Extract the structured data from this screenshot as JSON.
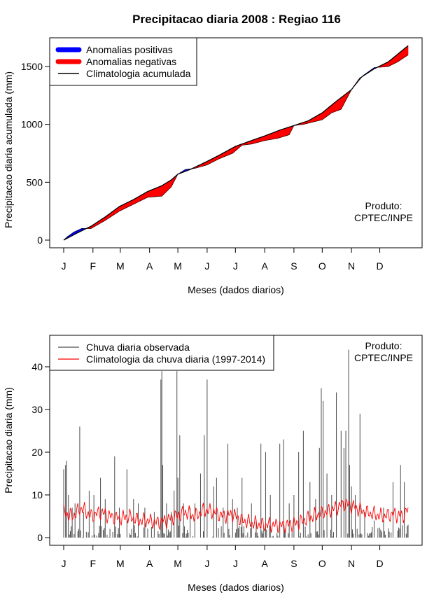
{
  "page": {
    "title": "Precipitacao diaria 2008 : Regiao 116"
  },
  "colors": {
    "positive": "#0000ff",
    "negative": "#ff0000",
    "climatology": "#000000",
    "observed": "#4d4d4d",
    "clim_daily": "#ff0000"
  },
  "chart_data": [
    {
      "type": "area",
      "title": "Precipitacao diaria 2008 : Regiao 116",
      "xlabel": "Meses (dados diarios)",
      "ylabel": "Precipitacao diaria acumulada (mm)",
      "xlim": [
        1,
        366
      ],
      "ylim": [
        0,
        1700
      ],
      "yticks": [
        0,
        500,
        1000,
        1500
      ],
      "month_ticks": {
        "labels": [
          "J",
          "F",
          "M",
          "A",
          "M",
          "J",
          "J",
          "A",
          "S",
          "O",
          "N",
          "D"
        ],
        "days": [
          1,
          32,
          61,
          92,
          122,
          153,
          183,
          214,
          245,
          275,
          306,
          336
        ]
      },
      "legend": {
        "position": "top-left",
        "items": [
          "Anomalias positivas",
          "Anomalias negativas",
          "Climatologia acumulada"
        ]
      },
      "annotation": [
        "Produto:",
        "CPTEC/INPE"
      ],
      "series": [
        {
          "name": "Climatologia acumulada (anchors, day/mm)",
          "points": [
            [
              1,
              0
            ],
            [
              15,
              60
            ],
            [
              30,
              120
            ],
            [
              45,
              200
            ],
            [
              60,
              290
            ],
            [
              75,
              350
            ],
            [
              90,
              420
            ],
            [
              105,
              470
            ],
            [
              115,
              520
            ],
            [
              122,
              570
            ],
            [
              135,
              610
            ],
            [
              153,
              680
            ],
            [
              165,
              730
            ],
            [
              183,
              810
            ],
            [
              200,
              860
            ],
            [
              214,
              900
            ],
            [
              230,
              950
            ],
            [
              245,
              990
            ],
            [
              260,
              1030
            ],
            [
              275,
              1100
            ],
            [
              290,
              1200
            ],
            [
              306,
              1300
            ],
            [
              315,
              1400
            ],
            [
              330,
              1480
            ],
            [
              345,
              1540
            ],
            [
              366,
              1680
            ]
          ]
        },
        {
          "name": "Precipitacao observada acumulada (anchors, day/mm)",
          "points": [
            [
              1,
              0
            ],
            [
              5,
              30
            ],
            [
              12,
              70
            ],
            [
              20,
              100
            ],
            [
              30,
              100
            ],
            [
              45,
              170
            ],
            [
              60,
              250
            ],
            [
              75,
              310
            ],
            [
              90,
              370
            ],
            [
              105,
              380
            ],
            [
              115,
              460
            ],
            [
              122,
              570
            ],
            [
              130,
              610
            ],
            [
              140,
              620
            ],
            [
              153,
              650
            ],
            [
              165,
              700
            ],
            [
              180,
              750
            ],
            [
              190,
              820
            ],
            [
              200,
              830
            ],
            [
              214,
              860
            ],
            [
              228,
              880
            ],
            [
              240,
              910
            ],
            [
              245,
              990
            ],
            [
              255,
              1000
            ],
            [
              265,
              1020
            ],
            [
              275,
              1040
            ],
            [
              285,
              1100
            ],
            [
              295,
              1130
            ],
            [
              306,
              1300
            ],
            [
              318,
              1420
            ],
            [
              330,
              1490
            ],
            [
              345,
              1500
            ],
            [
              355,
              1540
            ],
            [
              366,
              1600
            ]
          ]
        }
      ]
    },
    {
      "type": "line",
      "xlabel": "Meses (dados diarios)",
      "ylabel": "Precipitacao diaria (mm)",
      "xlim": [
        1,
        366
      ],
      "ylim": [
        0,
        45
      ],
      "yticks": [
        0,
        10,
        20,
        30,
        40
      ],
      "month_ticks": {
        "labels": [
          "J",
          "F",
          "M",
          "A",
          "M",
          "J",
          "J",
          "A",
          "S",
          "O",
          "N",
          "D"
        ],
        "days": [
          1,
          32,
          61,
          92,
          122,
          153,
          183,
          214,
          245,
          275,
          306,
          336
        ]
      },
      "legend": {
        "position": "top-left",
        "items": [
          "Chuva diaria observada",
          "Climatologia da chuva diaria (1997-2014)"
        ]
      },
      "annotation": [
        "Produto:",
        "CPTEC/INPE"
      ],
      "series": [
        {
          "name": "Chuva diaria observada (peaks, day/mm)",
          "points": [
            [
              1,
              16
            ],
            [
              3,
              17
            ],
            [
              4,
              18
            ],
            [
              6,
              10
            ],
            [
              10,
              7
            ],
            [
              13,
              8
            ],
            [
              18,
              26
            ],
            [
              22,
              6
            ],
            [
              28,
              11
            ],
            [
              33,
              10
            ],
            [
              40,
              14
            ],
            [
              45,
              9
            ],
            [
              55,
              19
            ],
            [
              60,
              7
            ],
            [
              68,
              16
            ],
            [
              75,
              9
            ],
            [
              80,
              8
            ],
            [
              87,
              7
            ],
            [
              97,
              6
            ],
            [
              104,
              37
            ],
            [
              105,
              39
            ],
            [
              106,
              17
            ],
            [
              110,
              8
            ],
            [
              115,
              6
            ],
            [
              118,
              11
            ],
            [
              121,
              39
            ],
            [
              122,
              14
            ],
            [
              124,
              24
            ],
            [
              128,
              8
            ],
            [
              135,
              7
            ],
            [
              140,
              8
            ],
            [
              146,
              15
            ],
            [
              150,
              24
            ],
            [
              153,
              37
            ],
            [
              160,
              12
            ],
            [
              163,
              14
            ],
            [
              170,
              7
            ],
            [
              175,
              22
            ],
            [
              180,
              9
            ],
            [
              185,
              7
            ],
            [
              190,
              14
            ],
            [
              200,
              8
            ],
            [
              205,
              4
            ],
            [
              210,
              22
            ],
            [
              215,
              20
            ],
            [
              220,
              10
            ],
            [
              230,
              22
            ],
            [
              234,
              23
            ],
            [
              240,
              8
            ],
            [
              245,
              10
            ],
            [
              250,
              20
            ],
            [
              255,
              25
            ],
            [
              262,
              13
            ],
            [
              268,
              9
            ],
            [
              272,
              21
            ],
            [
              274,
              35
            ],
            [
              276,
              32
            ],
            [
              280,
              15
            ],
            [
              285,
              10
            ],
            [
              290,
              34
            ],
            [
              295,
              25
            ],
            [
              298,
              21
            ],
            [
              300,
              25
            ],
            [
              303,
              44
            ],
            [
              304,
              17
            ],
            [
              306,
              12
            ],
            [
              310,
              10
            ],
            [
              315,
              29
            ],
            [
              320,
              6
            ],
            [
              330,
              4
            ],
            [
              340,
              7
            ],
            [
              350,
              13
            ],
            [
              358,
              17
            ],
            [
              362,
              13
            ],
            [
              366,
              3
            ]
          ]
        },
        {
          "name": "Climatologia da chuva diaria (day/mm)",
          "points": [
            [
              1,
              6
            ],
            [
              10,
              5
            ],
            [
              20,
              7
            ],
            [
              30,
              5
            ],
            [
              40,
              6
            ],
            [
              50,
              5
            ],
            [
              60,
              4.5
            ],
            [
              70,
              5
            ],
            [
              80,
              4
            ],
            [
              90,
              4
            ],
            [
              100,
              3.5
            ],
            [
              110,
              4
            ],
            [
              120,
              5
            ],
            [
              130,
              6
            ],
            [
              140,
              5
            ],
            [
              150,
              6.5
            ],
            [
              160,
              6
            ],
            [
              170,
              5
            ],
            [
              180,
              5.5
            ],
            [
              190,
              4
            ],
            [
              200,
              3.5
            ],
            [
              210,
              3
            ],
            [
              220,
              3
            ],
            [
              230,
              2.8
            ],
            [
              240,
              3
            ],
            [
              250,
              3.5
            ],
            [
              260,
              4.5
            ],
            [
              270,
              5.5
            ],
            [
              280,
              6
            ],
            [
              290,
              7
            ],
            [
              300,
              8
            ],
            [
              310,
              7
            ],
            [
              320,
              6
            ],
            [
              330,
              5.5
            ],
            [
              340,
              5
            ],
            [
              350,
              5.5
            ],
            [
              360,
              5
            ],
            [
              366,
              6.5
            ]
          ]
        }
      ]
    }
  ]
}
